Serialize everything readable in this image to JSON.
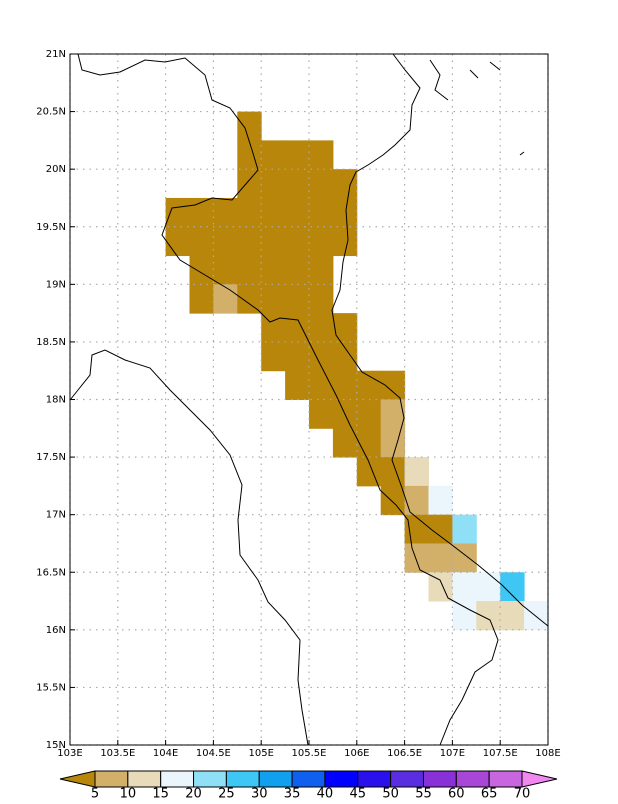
{
  "chart_data": {
    "type": "grid-map",
    "xlim": [
      103,
      108
    ],
    "ylim": [
      15,
      21
    ],
    "xticks": [
      {
        "value": 103,
        "label": "103E"
      },
      {
        "value": 103.5,
        "label": "103.5E"
      },
      {
        "value": 104,
        "label": "104E"
      },
      {
        "value": 104.5,
        "label": "104.5E"
      },
      {
        "value": 105,
        "label": "105E"
      },
      {
        "value": 105.5,
        "label": "105.5E"
      },
      {
        "value": 106,
        "label": "106E"
      },
      {
        "value": 106.5,
        "label": "106.5E"
      },
      {
        "value": 107,
        "label": "107E"
      },
      {
        "value": 107.5,
        "label": "107.5E"
      },
      {
        "value": 108,
        "label": "108E"
      }
    ],
    "yticks": [
      {
        "value": 15,
        "label": "15N"
      },
      {
        "value": 15.5,
        "label": "15.5N"
      },
      {
        "value": 16,
        "label": "16N"
      },
      {
        "value": 16.5,
        "label": "16.5N"
      },
      {
        "value": 17,
        "label": "17N"
      },
      {
        "value": 17.5,
        "label": "17.5N"
      },
      {
        "value": 18,
        "label": "18N"
      },
      {
        "value": 18.5,
        "label": "18.5N"
      },
      {
        "value": 19,
        "label": "19N"
      },
      {
        "value": 19.5,
        "label": "19.5N"
      },
      {
        "value": 20,
        "label": "20N"
      },
      {
        "value": 20.5,
        "label": "20.5N"
      },
      {
        "value": 21,
        "label": "21N"
      }
    ],
    "grid": true,
    "cell_size": 0.25,
    "levels": [
      5,
      10,
      15,
      20,
      25,
      30,
      35,
      40,
      45,
      50,
      55,
      60,
      65,
      70
    ],
    "colors": [
      "#b8860b",
      "#d2b06a",
      "#e8dbba",
      "#eaf6fc",
      "#8fe0f7",
      "#3ec7f4",
      "#10a0ef",
      "#1060f0",
      "#0000ff",
      "#2b10ee",
      "#5a2ee0",
      "#8a30d8",
      "#a846d8",
      "#c866e0",
      "#f088f0"
    ],
    "cells": [
      {
        "lon": 104.75,
        "lat": 20.25,
        "value": 2
      },
      {
        "lon": 104.75,
        "lat": 20,
        "value": 2
      },
      {
        "lon": 105,
        "lat": 20,
        "value": 2
      },
      {
        "lon": 105.25,
        "lat": 20,
        "value": 2
      },
      {
        "lon": 105.5,
        "lat": 20,
        "value": 2
      },
      {
        "lon": 104.75,
        "lat": 19.75,
        "value": 2
      },
      {
        "lon": 105,
        "lat": 19.75,
        "value": 2
      },
      {
        "lon": 105.25,
        "lat": 19.75,
        "value": 2
      },
      {
        "lon": 105.5,
        "lat": 19.75,
        "value": 2
      },
      {
        "lon": 105.75,
        "lat": 19.75,
        "value": 2
      },
      {
        "lon": 104,
        "lat": 19.5,
        "value": 2
      },
      {
        "lon": 104.25,
        "lat": 19.5,
        "value": 2
      },
      {
        "lon": 104.5,
        "lat": 19.5,
        "value": 2
      },
      {
        "lon": 104.75,
        "lat": 19.5,
        "value": 2
      },
      {
        "lon": 105,
        "lat": 19.5,
        "value": 2
      },
      {
        "lon": 105.25,
        "lat": 19.5,
        "value": 2
      },
      {
        "lon": 105.5,
        "lat": 19.5,
        "value": 2
      },
      {
        "lon": 105.75,
        "lat": 19.5,
        "value": 2
      },
      {
        "lon": 104,
        "lat": 19.25,
        "value": 2
      },
      {
        "lon": 104.25,
        "lat": 19.25,
        "value": 2
      },
      {
        "lon": 104.5,
        "lat": 19.25,
        "value": 2
      },
      {
        "lon": 104.75,
        "lat": 19.25,
        "value": 2
      },
      {
        "lon": 105,
        "lat": 19.25,
        "value": 2
      },
      {
        "lon": 105.25,
        "lat": 19.25,
        "value": 2
      },
      {
        "lon": 105.5,
        "lat": 19.25,
        "value": 2
      },
      {
        "lon": 105.75,
        "lat": 19.25,
        "value": 2
      },
      {
        "lon": 104.25,
        "lat": 19,
        "value": 2
      },
      {
        "lon": 104.5,
        "lat": 19,
        "value": 2
      },
      {
        "lon": 104.75,
        "lat": 19,
        "value": 2
      },
      {
        "lon": 105,
        "lat": 19,
        "value": 2
      },
      {
        "lon": 105.25,
        "lat": 19,
        "value": 2
      },
      {
        "lon": 105.5,
        "lat": 19,
        "value": 2
      },
      {
        "lon": 104.25,
        "lat": 18.75,
        "value": 2
      },
      {
        "lon": 104.5,
        "lat": 18.75,
        "value": 7.5
      },
      {
        "lon": 104.75,
        "lat": 18.75,
        "value": 2
      },
      {
        "lon": 105,
        "lat": 18.75,
        "value": 2
      },
      {
        "lon": 105.25,
        "lat": 18.75,
        "value": 2
      },
      {
        "lon": 105.5,
        "lat": 18.75,
        "value": 2
      },
      {
        "lon": 105,
        "lat": 18.5,
        "value": 2
      },
      {
        "lon": 105.25,
        "lat": 18.5,
        "value": 2
      },
      {
        "lon": 105.5,
        "lat": 18.5,
        "value": 2
      },
      {
        "lon": 105.75,
        "lat": 18.5,
        "value": 2
      },
      {
        "lon": 105,
        "lat": 18.25,
        "value": 2
      },
      {
        "lon": 105.25,
        "lat": 18.25,
        "value": 2
      },
      {
        "lon": 105.5,
        "lat": 18.25,
        "value": 2
      },
      {
        "lon": 105.75,
        "lat": 18.25,
        "value": 2
      },
      {
        "lon": 105.25,
        "lat": 18,
        "value": 2
      },
      {
        "lon": 105.5,
        "lat": 18,
        "value": 2
      },
      {
        "lon": 105.75,
        "lat": 18,
        "value": 2
      },
      {
        "lon": 106,
        "lat": 18,
        "value": 2
      },
      {
        "lon": 106.25,
        "lat": 18,
        "value": 2
      },
      {
        "lon": 105.5,
        "lat": 17.75,
        "value": 2
      },
      {
        "lon": 105.75,
        "lat": 17.75,
        "value": 2
      },
      {
        "lon": 106,
        "lat": 17.75,
        "value": 2
      },
      {
        "lon": 106.25,
        "lat": 17.75,
        "value": 7.5
      },
      {
        "lon": 105.75,
        "lat": 17.5,
        "value": 2
      },
      {
        "lon": 106,
        "lat": 17.5,
        "value": 2
      },
      {
        "lon": 106.25,
        "lat": 17.5,
        "value": 7.5
      },
      {
        "lon": 106,
        "lat": 17.25,
        "value": 2
      },
      {
        "lon": 106.25,
        "lat": 17.25,
        "value": 2
      },
      {
        "lon": 106.5,
        "lat": 17.25,
        "value": 12.5
      },
      {
        "lon": 106.25,
        "lat": 17,
        "value": 2
      },
      {
        "lon": 106.5,
        "lat": 17,
        "value": 7.5
      },
      {
        "lon": 106.75,
        "lat": 17,
        "value": 17.5
      },
      {
        "lon": 106.5,
        "lat": 16.75,
        "value": 2
      },
      {
        "lon": 106.75,
        "lat": 16.75,
        "value": 2
      },
      {
        "lon": 107,
        "lat": 16.75,
        "value": 22.5
      },
      {
        "lon": 106.5,
        "lat": 16.5,
        "value": 7.5
      },
      {
        "lon": 106.75,
        "lat": 16.5,
        "value": 7.5
      },
      {
        "lon": 107,
        "lat": 16.5,
        "value": 7.5
      },
      {
        "lon": 106.75,
        "lat": 16.25,
        "value": 12.5
      },
      {
        "lon": 107,
        "lat": 16.25,
        "value": 17.5
      },
      {
        "lon": 107.25,
        "lat": 16.25,
        "value": 17.5
      },
      {
        "lon": 107.5,
        "lat": 16.25,
        "value": 27.5
      },
      {
        "lon": 107,
        "lat": 16,
        "value": 17.5
      },
      {
        "lon": 107.25,
        "lat": 16,
        "value": 12.5
      },
      {
        "lon": 107.5,
        "lat": 16,
        "value": 12.5
      },
      {
        "lon": 107.75,
        "lat": 16,
        "value": 17.5
      }
    ]
  }
}
